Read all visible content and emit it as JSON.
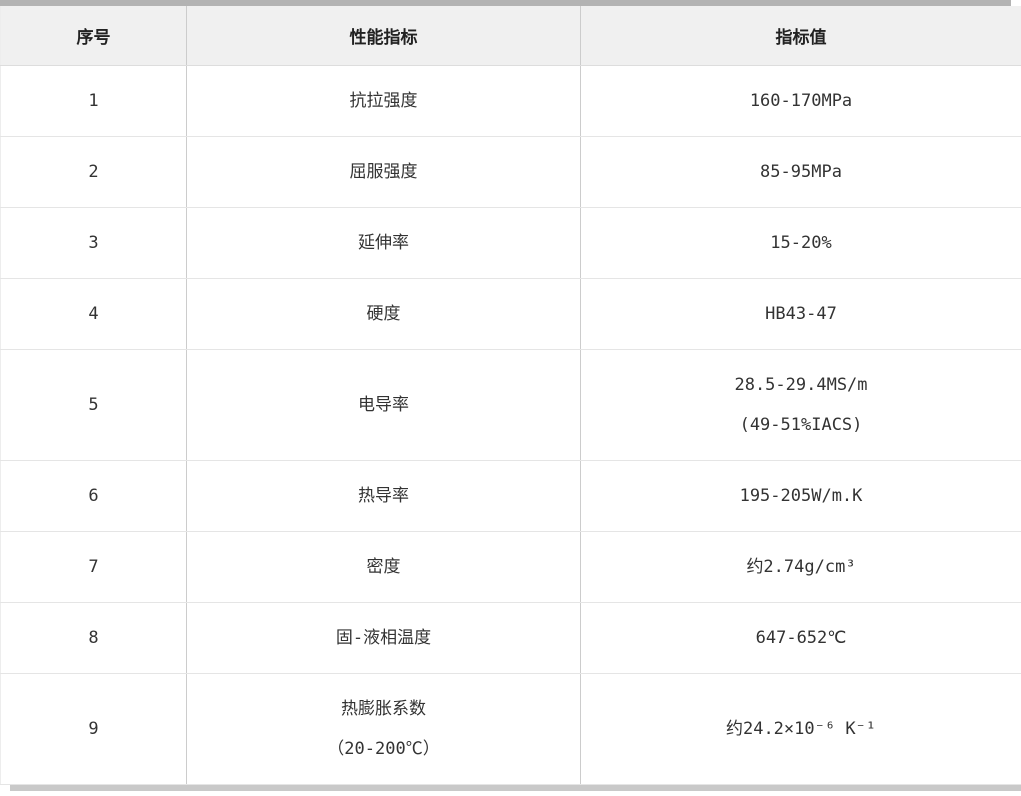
{
  "table": {
    "headers": [
      "序号",
      "性能指标",
      "指标值"
    ],
    "rows": [
      {
        "no": "1",
        "property_lines": [
          "抗拉强度"
        ],
        "value_lines": [
          "160-170MPa"
        ]
      },
      {
        "no": "2",
        "property_lines": [
          "屈服强度"
        ],
        "value_lines": [
          "85-95MPa"
        ]
      },
      {
        "no": "3",
        "property_lines": [
          "延伸率"
        ],
        "value_lines": [
          "15-20%"
        ]
      },
      {
        "no": "4",
        "property_lines": [
          "硬度"
        ],
        "value_lines": [
          "HB43-47"
        ]
      },
      {
        "no": "5",
        "property_lines": [
          "电导率"
        ],
        "value_lines": [
          "28.5-29.4MS/m",
          "(49-51%IACS)"
        ]
      },
      {
        "no": "6",
        "property_lines": [
          "热导率"
        ],
        "value_lines": [
          "195-205W/m.K"
        ]
      },
      {
        "no": "7",
        "property_lines": [
          "密度"
        ],
        "value_lines": [
          "约2.74g/cm³"
        ]
      },
      {
        "no": "8",
        "property_lines": [
          "固-液相温度"
        ],
        "value_lines": [
          "647-652℃"
        ]
      },
      {
        "no": "9",
        "property_lines": [
          "热膨胀系数",
          "（20-200℃）"
        ],
        "value_lines": [
          "约24.2×10⁻⁶ K⁻¹"
        ]
      }
    ]
  },
  "chart_data": {
    "type": "table",
    "title": "",
    "columns": [
      "序号",
      "性能指标",
      "指标值"
    ],
    "rows": [
      [
        "1",
        "抗拉强度",
        "160-170MPa"
      ],
      [
        "2",
        "屈服强度",
        "85-95MPa"
      ],
      [
        "3",
        "延伸率",
        "15-20%"
      ],
      [
        "4",
        "硬度",
        "HB43-47"
      ],
      [
        "5",
        "电导率",
        "28.5-29.4MS/m (49-51%IACS)"
      ],
      [
        "6",
        "热导率",
        "195-205W/m.K"
      ],
      [
        "7",
        "密度",
        "约2.74g/cm³"
      ],
      [
        "8",
        "固-液相温度",
        "647-652℃"
      ],
      [
        "9",
        "热膨胀系数（20-200℃）",
        "约24.2×10⁻⁶ K⁻¹"
      ]
    ]
  },
  "colors": {
    "header_background": "#f0f0f0",
    "row_background": "#ffffff",
    "top_bar": "#b3b3b3",
    "bottom_bar": "#c9c9c9",
    "vertical_border": "#cccccc",
    "horizontal_border": "#e5e5e5",
    "header_text": "#222222",
    "body_text": "#333333"
  }
}
